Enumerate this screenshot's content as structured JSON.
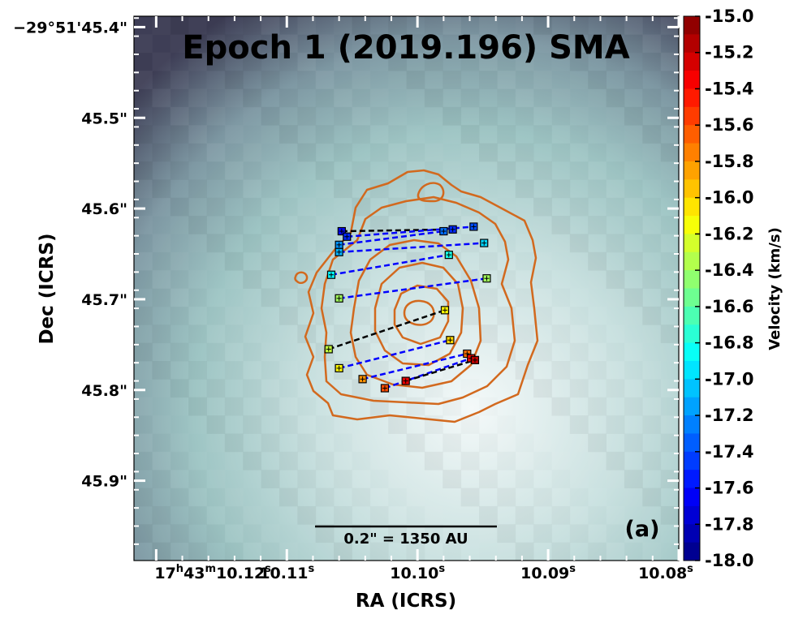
{
  "chart_data": {
    "type": "scatter",
    "title": "Epoch 1 (2019.196) SMA",
    "panel_label": "(a)",
    "xlabel": "RA (ICRS)",
    "ylabel": "Dec (ICRS)",
    "x_ticks": [
      {
        "h": "17",
        "m": "43",
        "s": "10.12",
        "s_sup": "s",
        "v": 10.12,
        "full": true
      },
      {
        "s": "10.11",
        "s_sup": "s",
        "v": 10.11
      },
      {
        "s": "10.10",
        "s_sup": "s",
        "v": 10.1
      },
      {
        "s": "10.09",
        "s_sup": "s",
        "v": 10.09
      },
      {
        "s": "10.08",
        "s_sup": "s",
        "v": 10.08
      }
    ],
    "x_range": [
      10.1217,
      10.08
    ],
    "y_ticks": [
      {
        "label": "−29°51'45.4\"",
        "v": 45.4
      },
      {
        "label": "45.5\"",
        "v": 45.5
      },
      {
        "label": "45.6\"",
        "v": 45.6
      },
      {
        "label": "45.7\"",
        "v": 45.7
      },
      {
        "label": "45.8\"",
        "v": 45.8
      },
      {
        "label": "45.9\"",
        "v": 45.9
      }
    ],
    "y_range": [
      45.388,
      45.988
    ],
    "scalebar_label": "0.2\" = 1350 AU",
    "colorbar": {
      "label": "Velocity (km/s)",
      "range": [
        -18.0,
        -15.0
      ],
      "ticks": [
        "-15.0",
        "-15.2",
        "-15.4",
        "-15.6",
        "-15.8",
        "-16.0",
        "-16.2",
        "-16.4",
        "-16.6",
        "-16.8",
        "-17.0",
        "-17.2",
        "-17.4",
        "-17.6",
        "-17.8",
        "-18.0"
      ],
      "tick_values": [
        -15.0,
        -15.2,
        -15.4,
        -15.6,
        -15.8,
        -16.0,
        -16.2,
        -16.4,
        -16.6,
        -16.8,
        -17.0,
        -17.2,
        -17.4,
        -17.6,
        -17.8,
        -18.0
      ]
    },
    "points": [
      {
        "ra": 10.1058,
        "dec": 45.625,
        "v": -17.6
      },
      {
        "ra": 10.1054,
        "dec": 45.631,
        "v": -17.5
      },
      {
        "ra": 10.106,
        "dec": 45.64,
        "v": -17.2
      },
      {
        "ra": 10.106,
        "dec": 45.648,
        "v": -17.1
      },
      {
        "ra": 10.1066,
        "dec": 45.673,
        "v": -16.9
      },
      {
        "ra": 10.106,
        "dec": 45.699,
        "v": -16.4
      },
      {
        "ra": 10.1068,
        "dec": 45.755,
        "v": -16.3
      },
      {
        "ra": 10.106,
        "dec": 45.776,
        "v": -16.1
      },
      {
        "ra": 10.1042,
        "dec": 45.788,
        "v": -15.8
      },
      {
        "ra": 10.1025,
        "dec": 45.798,
        "v": -15.6
      },
      {
        "ra": 10.1009,
        "dec": 45.79,
        "v": -15.3
      },
      {
        "ra": 10.098,
        "dec": 45.625,
        "v": -17.3
      },
      {
        "ra": 10.0973,
        "dec": 45.623,
        "v": -17.5
      },
      {
        "ra": 10.0957,
        "dec": 45.62,
        "v": -17.4
      },
      {
        "ra": 10.0949,
        "dec": 45.638,
        "v": -17.0
      },
      {
        "ra": 10.0976,
        "dec": 45.651,
        "v": -16.8
      },
      {
        "ra": 10.0947,
        "dec": 45.677,
        "v": -16.4
      },
      {
        "ra": 10.0979,
        "dec": 45.712,
        "v": -16.1
      },
      {
        "ra": 10.0975,
        "dec": 45.745,
        "v": -16.0
      },
      {
        "ra": 10.0962,
        "dec": 45.76,
        "v": -15.7
      },
      {
        "ra": 10.0959,
        "dec": 45.765,
        "v": -15.4
      },
      {
        "ra": 10.0956,
        "dec": 45.767,
        "v": -15.2
      }
    ],
    "pair_lines": [
      {
        "a": 0,
        "b": 12,
        "style": "black"
      },
      {
        "a": 1,
        "b": 13,
        "style": "blue"
      },
      {
        "a": 2,
        "b": 11,
        "style": "blue"
      },
      {
        "a": 3,
        "b": 14,
        "style": "blue"
      },
      {
        "a": 4,
        "b": 15,
        "style": "blue"
      },
      {
        "a": 5,
        "b": 16,
        "style": "blue"
      },
      {
        "a": 6,
        "b": 17,
        "style": "black"
      },
      {
        "a": 7,
        "b": 18,
        "style": "blue"
      },
      {
        "a": 8,
        "b": 19,
        "style": "blue"
      },
      {
        "a": 9,
        "b": 20,
        "style": "blue"
      },
      {
        "a": 10,
        "b": 21,
        "style": "black"
      }
    ]
  }
}
